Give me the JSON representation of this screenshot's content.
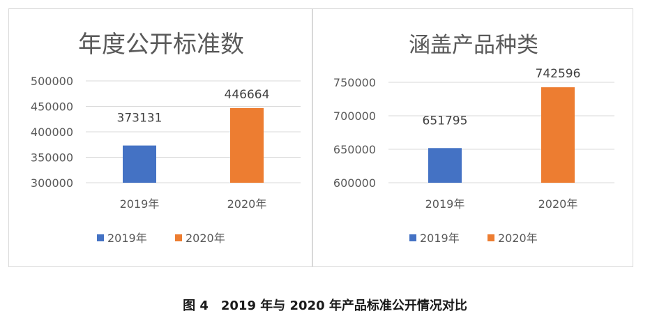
{
  "caption": "图 4　2019 年与 2020 年产品标准公开情况对比",
  "colors": {
    "series_2019": "#4472C4",
    "series_2020": "#ED7D31"
  },
  "chart_data": [
    {
      "type": "bar",
      "title": "年度公开标准数",
      "categories": [
        "2019年",
        "2020年"
      ],
      "values": [
        373131,
        446664
      ],
      "data_labels": [
        "373131",
        "446664"
      ],
      "ylim": [
        300000,
        500000
      ],
      "yticks": [
        300000,
        350000,
        400000,
        450000,
        500000
      ],
      "ytick_labels": [
        "300000",
        "350000",
        "400000",
        "450000",
        "500000"
      ],
      "grid": true,
      "legend_position": "bottom",
      "legend": [
        "2019年",
        "2020年"
      ]
    },
    {
      "type": "bar",
      "title": "涵盖产品种类",
      "categories": [
        "2019年",
        "2020年"
      ],
      "values": [
        651795,
        742596
      ],
      "data_labels": [
        "651795",
        "742596"
      ],
      "ylim": [
        600000,
        750000
      ],
      "yticks": [
        600000,
        650000,
        700000,
        750000
      ],
      "ytick_labels": [
        "600000",
        "650000",
        "700000",
        "750000"
      ],
      "grid": true,
      "legend_position": "bottom",
      "legend": [
        "2019年",
        "2020年"
      ]
    }
  ]
}
